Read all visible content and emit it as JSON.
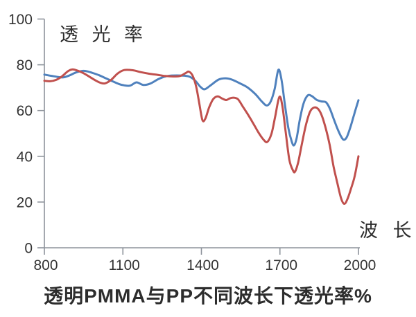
{
  "chart_data": {
    "type": "line",
    "title": "透明PMMA与PP不同波长下透光率%",
    "xlabel": "波  长",
    "ylabel": "透 光 率",
    "xlim": [
      800,
      2000
    ],
    "ylim": [
      0,
      100
    ],
    "x_ticks": [
      800,
      1100,
      1400,
      1700,
      2000
    ],
    "y_ticks": [
      0,
      20,
      40,
      60,
      80,
      100
    ],
    "grid": false,
    "legend": "none",
    "axis_color": "#8d939b",
    "series": [
      {
        "name": "blue",
        "color": "#4F81BD",
        "points": [
          [
            800,
            75.7
          ],
          [
            825,
            75.2
          ],
          [
            850,
            74.7
          ],
          [
            872,
            74.5
          ],
          [
            895,
            75.3
          ],
          [
            920,
            76.6
          ],
          [
            945,
            77.3
          ],
          [
            965,
            77.1
          ],
          [
            985,
            76.4
          ],
          [
            1010,
            75.4
          ],
          [
            1035,
            74.1
          ],
          [
            1060,
            72.8
          ],
          [
            1085,
            71.6
          ],
          [
            1105,
            71.0
          ],
          [
            1128,
            70.9
          ],
          [
            1152,
            72.3
          ],
          [
            1178,
            71.2
          ],
          [
            1205,
            71.8
          ],
          [
            1235,
            73.7
          ],
          [
            1262,
            74.9
          ],
          [
            1290,
            75.3
          ],
          [
            1322,
            75.3
          ],
          [
            1352,
            74.9
          ],
          [
            1375,
            73.2
          ],
          [
            1395,
            70.5
          ],
          [
            1412,
            69.3
          ],
          [
            1435,
            71.0
          ],
          [
            1465,
            73.5
          ],
          [
            1490,
            74.1
          ],
          [
            1515,
            73.6
          ],
          [
            1545,
            72.0
          ],
          [
            1575,
            70.2
          ],
          [
            1605,
            67.3
          ],
          [
            1632,
            63.8
          ],
          [
            1650,
            62.2
          ],
          [
            1665,
            64.0
          ],
          [
            1680,
            69.5
          ],
          [
            1694,
            77.8
          ],
          [
            1706,
            73.5
          ],
          [
            1718,
            63.5
          ],
          [
            1732,
            52.5
          ],
          [
            1745,
            46.5
          ],
          [
            1754,
            44.8
          ],
          [
            1764,
            48.0
          ],
          [
            1776,
            56.0
          ],
          [
            1790,
            63.0
          ],
          [
            1806,
            66.6
          ],
          [
            1822,
            66.3
          ],
          [
            1840,
            64.7
          ],
          [
            1858,
            64.0
          ],
          [
            1876,
            63.6
          ],
          [
            1890,
            61.0
          ],
          [
            1905,
            56.5
          ],
          [
            1920,
            52.0
          ],
          [
            1933,
            48.8
          ],
          [
            1944,
            47.2
          ],
          [
            1956,
            48.5
          ],
          [
            1970,
            53.0
          ],
          [
            1984,
            58.5
          ],
          [
            2000,
            64.5
          ]
        ]
      },
      {
        "name": "red",
        "color": "#C0504D",
        "points": [
          [
            800,
            73.0
          ],
          [
            822,
            72.8
          ],
          [
            845,
            73.4
          ],
          [
            868,
            75.0
          ],
          [
            890,
            77.2
          ],
          [
            908,
            78.0
          ],
          [
            928,
            77.4
          ],
          [
            950,
            76.3
          ],
          [
            972,
            74.8
          ],
          [
            995,
            73.2
          ],
          [
            1015,
            72.1
          ],
          [
            1032,
            71.9
          ],
          [
            1055,
            73.4
          ],
          [
            1080,
            76.2
          ],
          [
            1105,
            77.7
          ],
          [
            1138,
            77.6
          ],
          [
            1168,
            76.8
          ],
          [
            1200,
            76.1
          ],
          [
            1232,
            75.6
          ],
          [
            1262,
            75.1
          ],
          [
            1292,
            74.9
          ],
          [
            1318,
            75.1
          ],
          [
            1340,
            76.4
          ],
          [
            1352,
            77.0
          ],
          [
            1366,
            75.3
          ],
          [
            1380,
            70.5
          ],
          [
            1392,
            63.0
          ],
          [
            1404,
            55.8
          ],
          [
            1415,
            56.5
          ],
          [
            1430,
            61.5
          ],
          [
            1445,
            65.0
          ],
          [
            1462,
            66.2
          ],
          [
            1480,
            65.2
          ],
          [
            1495,
            64.6
          ],
          [
            1510,
            65.4
          ],
          [
            1525,
            65.6
          ],
          [
            1540,
            64.9
          ],
          [
            1558,
            61.8
          ],
          [
            1578,
            58.2
          ],
          [
            1598,
            54.4
          ],
          [
            1618,
            50.4
          ],
          [
            1638,
            47.2
          ],
          [
            1652,
            46.3
          ],
          [
            1668,
            50.0
          ],
          [
            1682,
            57.5
          ],
          [
            1698,
            66.0
          ],
          [
            1710,
            61.5
          ],
          [
            1722,
            50.5
          ],
          [
            1736,
            38.5
          ],
          [
            1750,
            33.8
          ],
          [
            1758,
            33.3
          ],
          [
            1770,
            37.5
          ],
          [
            1784,
            45.5
          ],
          [
            1800,
            54.0
          ],
          [
            1815,
            59.5
          ],
          [
            1830,
            61.3
          ],
          [
            1845,
            60.8
          ],
          [
            1860,
            57.8
          ],
          [
            1876,
            51.8
          ],
          [
            1890,
            45.0
          ],
          [
            1905,
            35.5
          ],
          [
            1920,
            28.0
          ],
          [
            1934,
            21.5
          ],
          [
            1946,
            19.2
          ],
          [
            1958,
            21.3
          ],
          [
            1972,
            26.0
          ],
          [
            1986,
            31.5
          ],
          [
            2000,
            40.0
          ]
        ]
      }
    ]
  }
}
